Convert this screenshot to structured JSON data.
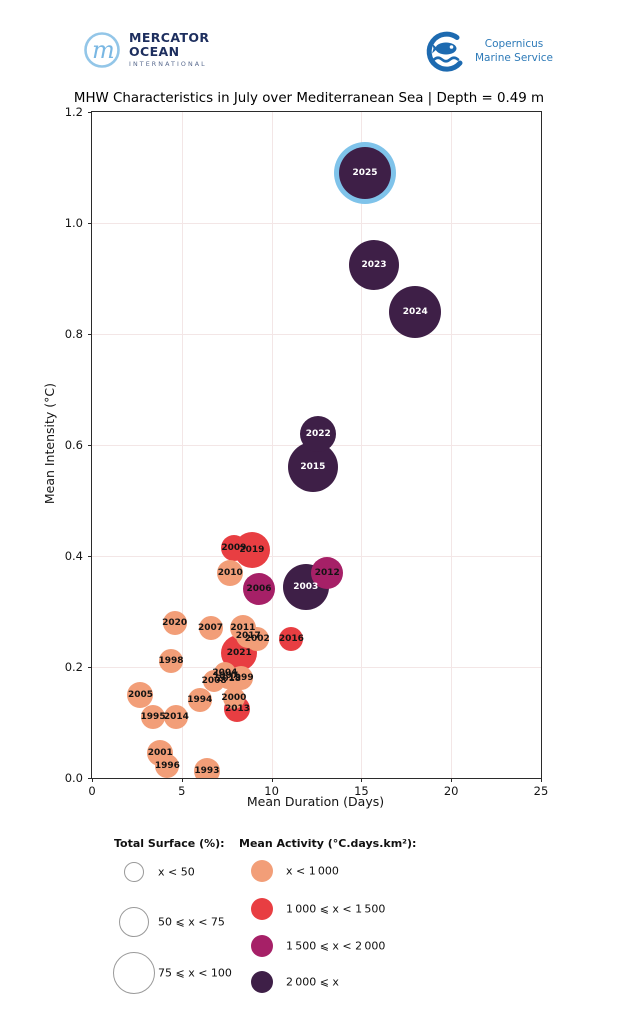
{
  "header": {
    "mercator": {
      "monogram": "m",
      "line1": "MERCATOR",
      "line2": "OCEAN",
      "line3": "INTERNATIONAL"
    },
    "copernicus": {
      "line1": "Copernicus",
      "line2": "Marine Service"
    }
  },
  "title": "MHW Characteristics in July over Mediterranean Sea | Depth = 0.49 m",
  "colors": {
    "lt1000": "#f29e78",
    "b1000_1500": "#e83e42",
    "b1500_2000": "#a62067",
    "ge2000": "#3e1f47",
    "highlight_ring": "#7fc3ea",
    "grid": "#f3e6e6",
    "spine": "#2b2b2b"
  },
  "chart_data": {
    "type": "scatter",
    "title": "MHW Characteristics in July over Mediterranean Sea | Depth = 0.49 m",
    "xlabel": "Mean Duration (Days)",
    "ylabel": "Mean Intensity (°C)",
    "xlim": [
      0,
      25
    ],
    "ylim": [
      0,
      1.2
    ],
    "x_ticks": [
      0,
      5,
      10,
      15,
      20,
      25
    ],
    "y_ticks": [
      0.0,
      0.2,
      0.4,
      0.6,
      0.8,
      1.0,
      1.2
    ],
    "grid": true,
    "legend_position": "bottom",
    "size_encoding": "Total Surface (%)",
    "color_encoding": "Mean Activity (°C.days.km²)",
    "points": [
      {
        "year": "1993",
        "x": 6.4,
        "y": 0.013,
        "r": 13,
        "cat": "lt1000",
        "highlight": false
      },
      {
        "year": "1994",
        "x": 6.0,
        "y": 0.14,
        "r": 12,
        "cat": "lt1000",
        "highlight": false
      },
      {
        "year": "1995",
        "x": 3.4,
        "y": 0.11,
        "r": 12,
        "cat": "lt1000",
        "highlight": false
      },
      {
        "year": "1996",
        "x": 4.2,
        "y": 0.022,
        "r": 12,
        "cat": "lt1000",
        "highlight": false
      },
      {
        "year": "1997",
        "x": 7.45,
        "y": 0.183,
        "r": 10,
        "cat": "lt1000",
        "highlight": false
      },
      {
        "year": "1998",
        "x": 4.4,
        "y": 0.21,
        "r": 12,
        "cat": "lt1000",
        "highlight": false
      },
      {
        "year": "1999",
        "x": 8.3,
        "y": 0.18,
        "r": 12,
        "cat": "lt1000",
        "highlight": false
      },
      {
        "year": "2000",
        "x": 7.9,
        "y": 0.145,
        "r": 11,
        "cat": "lt1000",
        "highlight": false
      },
      {
        "year": "2001",
        "x": 3.8,
        "y": 0.045,
        "r": 13,
        "cat": "lt1000",
        "highlight": false
      },
      {
        "year": "2002",
        "x": 9.2,
        "y": 0.25,
        "r": 12,
        "cat": "lt1000",
        "highlight": false
      },
      {
        "year": "2003",
        "x": 11.9,
        "y": 0.345,
        "r": 23,
        "cat": "ge2000",
        "highlight": false
      },
      {
        "year": "2004",
        "x": 7.4,
        "y": 0.19,
        "r": 11,
        "cat": "lt1000",
        "highlight": false
      },
      {
        "year": "2005",
        "x": 2.7,
        "y": 0.15,
        "r": 13,
        "cat": "lt1000",
        "highlight": false
      },
      {
        "year": "2006",
        "x": 9.3,
        "y": 0.34,
        "r": 16,
        "cat": "b1500_2000",
        "highlight": false
      },
      {
        "year": "2007",
        "x": 6.6,
        "y": 0.27,
        "r": 12,
        "cat": "lt1000",
        "highlight": false
      },
      {
        "year": "2008",
        "x": 6.8,
        "y": 0.175,
        "r": 11,
        "cat": "lt1000",
        "highlight": false
      },
      {
        "year": "2009",
        "x": 7.9,
        "y": 0.415,
        "r": 13,
        "cat": "b1000_1500",
        "highlight": false
      },
      {
        "year": "2010",
        "x": 7.7,
        "y": 0.37,
        "r": 13,
        "cat": "lt1000",
        "highlight": false
      },
      {
        "year": "2011",
        "x": 8.4,
        "y": 0.27,
        "r": 13,
        "cat": "lt1000",
        "highlight": false
      },
      {
        "year": "2012",
        "x": 13.1,
        "y": 0.37,
        "r": 16,
        "cat": "b1500_2000",
        "highlight": false
      },
      {
        "year": "2013",
        "x": 8.1,
        "y": 0.125,
        "r": 13,
        "cat": "b1000_1500",
        "highlight": false
      },
      {
        "year": "2014",
        "x": 4.7,
        "y": 0.11,
        "r": 12,
        "cat": "lt1000",
        "highlight": false
      },
      {
        "year": "2015",
        "x": 12.3,
        "y": 0.56,
        "r": 25,
        "cat": "ge2000",
        "highlight": false
      },
      {
        "year": "2016",
        "x": 11.1,
        "y": 0.25,
        "r": 12,
        "cat": "b1000_1500",
        "highlight": false
      },
      {
        "year": "2017",
        "x": 8.7,
        "y": 0.255,
        "r": 12,
        "cat": "lt1000",
        "highlight": false
      },
      {
        "year": "2018",
        "x": 7.6,
        "y": 0.178,
        "r": 10,
        "cat": "lt1000",
        "highlight": false
      },
      {
        "year": "2019",
        "x": 8.9,
        "y": 0.41,
        "r": 18,
        "cat": "b1000_1500",
        "highlight": false
      },
      {
        "year": "2020",
        "x": 4.6,
        "y": 0.28,
        "r": 12,
        "cat": "lt1000",
        "highlight": false
      },
      {
        "year": "2021",
        "x": 8.2,
        "y": 0.225,
        "r": 18,
        "cat": "b1000_1500",
        "highlight": false
      },
      {
        "year": "2022",
        "x": 12.6,
        "y": 0.62,
        "r": 18,
        "cat": "ge2000",
        "highlight": false
      },
      {
        "year": "2023",
        "x": 15.7,
        "y": 0.925,
        "r": 25,
        "cat": "ge2000",
        "highlight": false
      },
      {
        "year": "2024",
        "x": 18.0,
        "y": 0.84,
        "r": 26,
        "cat": "ge2000",
        "highlight": false
      },
      {
        "year": "2025",
        "x": 15.2,
        "y": 1.09,
        "r": 26,
        "cat": "ge2000",
        "highlight": true
      }
    ]
  },
  "legend": {
    "size": {
      "heading": "Total Surface (%):",
      "items": [
        {
          "label": "x < 50"
        },
        {
          "label": "50 ⩽ x < 75"
        },
        {
          "label": "75 ⩽ x < 100"
        }
      ]
    },
    "color": {
      "heading": "Mean Activity (°C.days.km²):",
      "items": [
        {
          "label": "x < 1 000",
          "color": "#f29e78"
        },
        {
          "label": "1 000 ⩽ x < 1 500",
          "color": "#e83e42"
        },
        {
          "label": "1 500 ⩽ x < 2 000",
          "color": "#a62067"
        },
        {
          "label": "2 000 ⩽ x",
          "color": "#3e1f47"
        }
      ]
    }
  }
}
